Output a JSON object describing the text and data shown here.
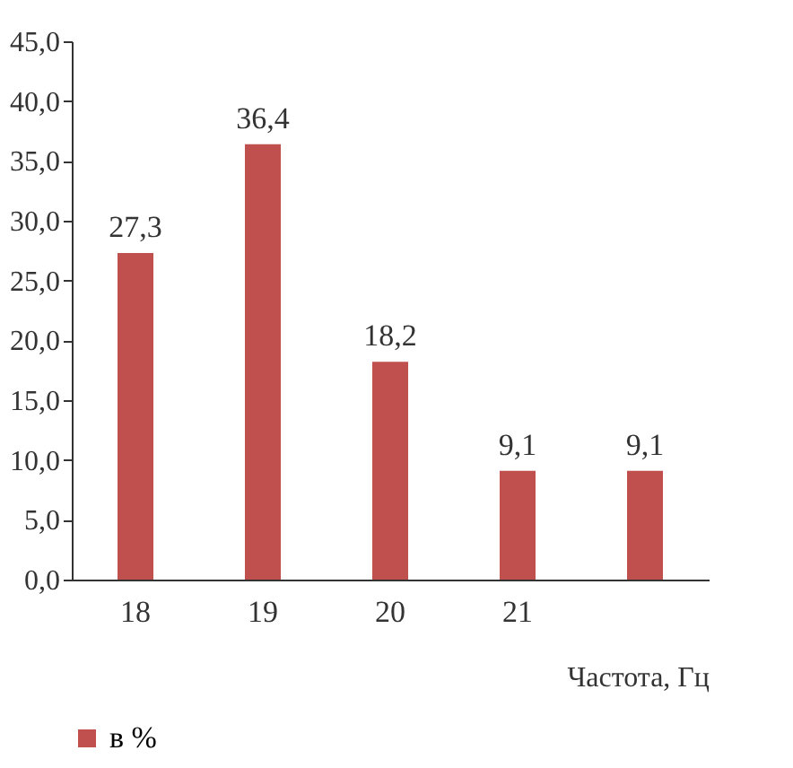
{
  "chart_data": {
    "type": "bar",
    "categories": [
      "18",
      "19",
      "20",
      "21",
      null
    ],
    "series": [
      {
        "name": "в %",
        "color": "#c0504d",
        "values": [
          27.3,
          36.4,
          18.2,
          9.1,
          9.1
        ]
      }
    ],
    "xlabel": "Частота, Гц",
    "ylim": [
      0,
      45
    ],
    "yticks": [
      {
        "value": 0,
        "label": "0,0"
      },
      {
        "value": 5,
        "label": "5,0"
      },
      {
        "value": 10,
        "label": "10,0"
      },
      {
        "value": 15,
        "label": "15,0"
      },
      {
        "value": 20,
        "label": "20,0"
      },
      {
        "value": 25,
        "label": "25,0"
      },
      {
        "value": 30,
        "label": "30,0"
      },
      {
        "value": 35,
        "label": "35,0"
      },
      {
        "value": 40,
        "label": "40,0"
      },
      {
        "value": 45,
        "label": "45,0"
      }
    ],
    "value_labels": [
      "27,3",
      "36,4",
      "18,2",
      "9,1",
      "9,1"
    ],
    "grid": false,
    "legend": "bottom"
  }
}
